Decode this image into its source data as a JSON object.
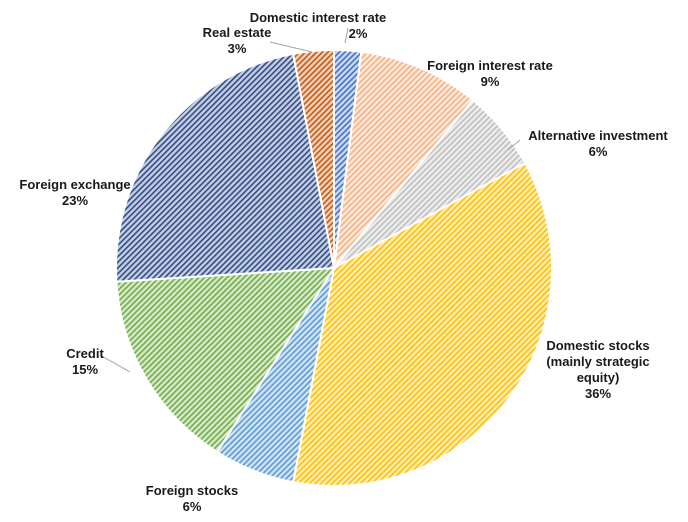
{
  "chart_data": {
    "type": "pie",
    "title": "",
    "start_angle_deg": 0,
    "direction": "clockwise",
    "slices": [
      {
        "name": "Domestic interest rate",
        "value": 2,
        "label_text": "2%",
        "color": "#4472C4"
      },
      {
        "name": "Foreign interest rate",
        "value": 9,
        "label_text": "9%",
        "color": "#F4B183"
      },
      {
        "name": "Alternative investment",
        "value": 6,
        "label_text": "6%",
        "color": "#BFBFBF"
      },
      {
        "name": "Domestic stocks (mainly strategic equity)",
        "name_lines": [
          "Domestic stocks",
          "(mainly strategic",
          "equity)"
        ],
        "value": 36,
        "label_text": "36%",
        "color": "#FFC000"
      },
      {
        "name": "Foreign stocks",
        "value": 6,
        "label_text": "6%",
        "color": "#5B9BD5"
      },
      {
        "name": "Credit",
        "value": 15,
        "label_text": "15%",
        "color": "#70AD47"
      },
      {
        "name": "Foreign exchange",
        "value": 23,
        "label_text": "23%",
        "color": "#2F4D8A"
      },
      {
        "name": "Real estate",
        "value": 3,
        "label_text": "3%",
        "color": "#C55A11"
      }
    ]
  }
}
